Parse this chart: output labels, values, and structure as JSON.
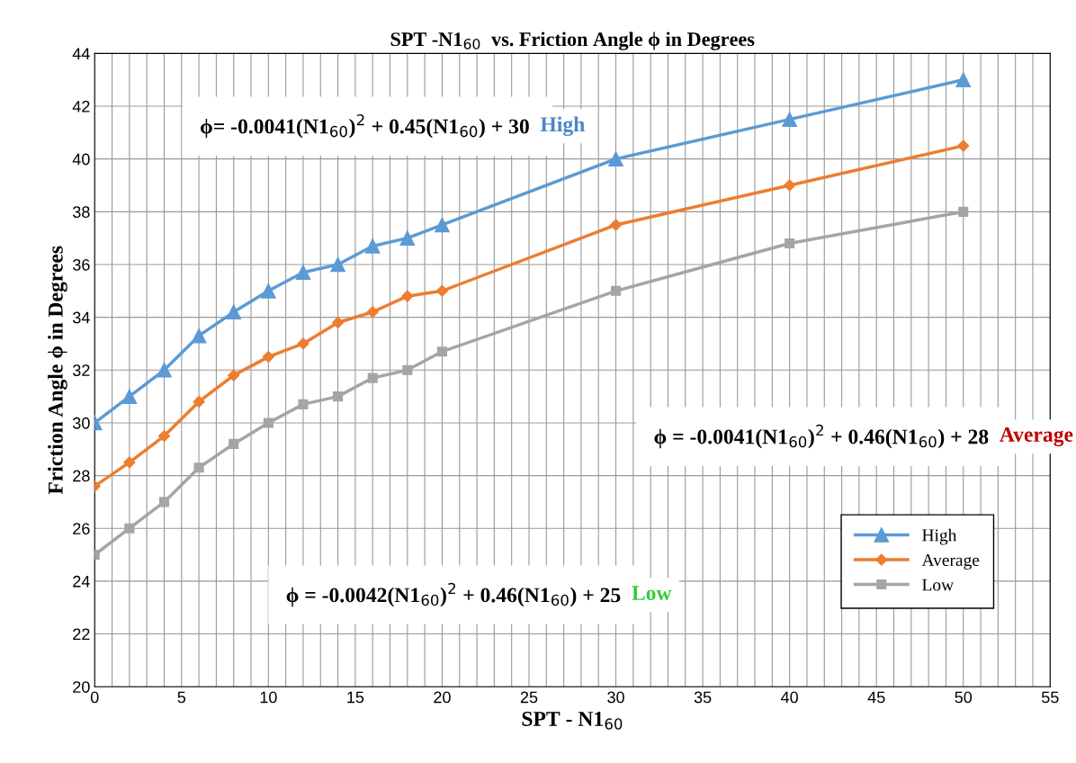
{
  "chart_data": {
    "type": "line",
    "title": "SPT -N1$_{60}$  vs. Friction Angle ϕ in Degrees",
    "xlabel": "SPT - N1$_{60}$",
    "ylabel": "Friction Angle ϕ in Degrees",
    "x": [
      0,
      2,
      4,
      6,
      8,
      10,
      12,
      14,
      16,
      18,
      20,
      30,
      40,
      50
    ],
    "series": [
      {
        "name": "High",
        "color": "#5b9bd5",
        "marker": "triangle",
        "values": [
          30,
          31,
          32,
          33.3,
          34.2,
          35,
          35.7,
          36,
          36.7,
          37,
          37.5,
          40,
          41.5,
          43
        ]
      },
      {
        "name": "Average",
        "color": "#ed7d31",
        "marker": "diamond",
        "values": [
          27.6,
          28.5,
          29.5,
          30.8,
          31.8,
          32.5,
          33,
          33.8,
          34.2,
          34.8,
          35,
          37.5,
          39,
          40.5
        ]
      },
      {
        "name": "Low",
        "color": "#a5a5a5",
        "marker": "square",
        "values": [
          25,
          26,
          27,
          28.3,
          29.2,
          30,
          30.7,
          31,
          31.7,
          32,
          32.7,
          35,
          36.8,
          38
        ]
      }
    ],
    "annotations": [
      "ϕ= -0.0041(N1$_{60}$)$^{2}$ + 0.45(N1$_{60}$) + 30 High",
      "ϕ = -0.0041(N1$_{60}$)$^{2}$ + 0.46(N1$_{60}$) + 28 Average",
      "ϕ = -0.0042(N1$_{60}$)$^{2}$ + 0.46(N1$_{60}$) + 25 Low"
    ],
    "xlim": [
      0,
      55
    ],
    "ylim": [
      20,
      44
    ],
    "xticks": [
      0,
      {
        "value": 1,
        "label": null
      },
      {
        "value": 2,
        "label": null
      },
      {
        "value": 3,
        "label": null
      },
      {
        "value": 4,
        "label": null
      },
      5,
      {
        "value": 6,
        "label": null
      },
      {
        "value": 7,
        "label": null
      },
      {
        "value": 8,
        "label": null
      },
      {
        "value": 9,
        "label": null
      },
      10,
      {
        "value": 11,
        "label": null
      },
      {
        "value": 12,
        "label": null
      },
      {
        "value": 13,
        "label": null
      },
      {
        "value": 14,
        "label": null
      },
      15,
      {
        "value": 16,
        "label": null
      },
      {
        "value": 17,
        "label": null
      },
      {
        "value": 18,
        "label": null
      },
      {
        "value": 19,
        "label": null
      },
      20,
      {
        "value": 21,
        "label": null
      },
      {
        "value": 22,
        "label": null
      },
      {
        "value": 23,
        "label": null
      },
      {
        "value": 24,
        "label": null
      },
      25,
      {
        "value": 26,
        "label": null
      },
      {
        "value": 27,
        "label": null
      },
      {
        "value": 28,
        "label": null
      },
      {
        "value": 29,
        "label": null
      },
      30,
      {
        "value": 31,
        "label": null
      },
      {
        "value": 32,
        "label": null
      },
      {
        "value": 33,
        "label": null
      },
      {
        "value": 34,
        "label": null
      },
      35,
      {
        "value": 36,
        "label": null
      },
      {
        "value": 37,
        "label": null
      },
      {
        "value": 38,
        "label": null
      },
      {
        "value": 39,
        "label": null
      },
      40,
      {
        "value": 41,
        "label": null
      },
      {
        "value": 42,
        "label": null
      },
      {
        "value": 43,
        "label": null
      },
      {
        "value": 44,
        "label": null
      },
      45,
      {
        "value": 46,
        "label": null
      },
      {
        "value": 47,
        "label": null
      },
      {
        "value": 48,
        "label": null
      },
      {
        "value": 49,
        "label": null
      },
      50,
      {
        "value": 51,
        "label": null
      },
      {
        "value": 52,
        "label": null
      },
      {
        "value": 53,
        "label": null
      },
      {
        "value": 54,
        "label": null
      },
      55
    ],
    "yticks": [
      20,
      22,
      24,
      26,
      28,
      30,
      32,
      34,
      36,
      38,
      40,
      42,
      44
    ],
    "grid": true,
    "legend": "lower right",
    "line_style": "solid"
  }
}
